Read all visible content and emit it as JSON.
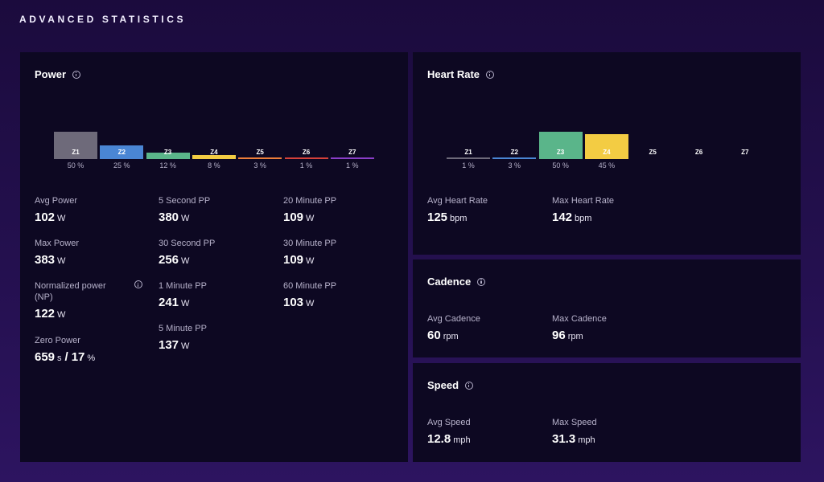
{
  "page": {
    "title": "ADVANCED STATISTICS"
  },
  "power": {
    "title": "Power",
    "zones": [
      {
        "label": "Z1",
        "pct": "50 %",
        "value": 50,
        "color": "#6e6a7a"
      },
      {
        "label": "Z2",
        "pct": "25 %",
        "value": 25,
        "color": "#4a86d4"
      },
      {
        "label": "Z3",
        "pct": "12 %",
        "value": 12,
        "color": "#5ab58a"
      },
      {
        "label": "Z4",
        "pct": "8 %",
        "value": 8,
        "color": "#f3cc43"
      },
      {
        "label": "Z5",
        "pct": "3 %",
        "value": 3,
        "color": "#ee7e3a"
      },
      {
        "label": "Z6",
        "pct": "1 %",
        "value": 1,
        "color": "#d6413a"
      },
      {
        "label": "Z7",
        "pct": "1 %",
        "value": 1,
        "color": "#8a3ec8"
      }
    ],
    "stats": {
      "avg_power": {
        "label": "Avg Power",
        "value": "102",
        "unit": "W"
      },
      "max_power": {
        "label": "Max Power",
        "value": "383",
        "unit": "W"
      },
      "np": {
        "label": "Normalized power (NP)",
        "value": "122",
        "unit": "W"
      },
      "zero_power": {
        "label": "Zero Power",
        "value": "659",
        "unit": "s",
        "sep": "/",
        "value2": "17",
        "unit2": "%"
      },
      "pp_5s": {
        "label": "5 Second PP",
        "value": "380",
        "unit": "W"
      },
      "pp_30s": {
        "label": "30 Second PP",
        "value": "256",
        "unit": "W"
      },
      "pp_1m": {
        "label": "1 Minute PP",
        "value": "241",
        "unit": "W"
      },
      "pp_5m": {
        "label": "5 Minute PP",
        "value": "137",
        "unit": "W"
      },
      "pp_20m": {
        "label": "20 Minute PP",
        "value": "109",
        "unit": "W"
      },
      "pp_30m": {
        "label": "30 Minute PP",
        "value": "109",
        "unit": "W"
      },
      "pp_60m": {
        "label": "60 Minute PP",
        "value": "103",
        "unit": "W"
      }
    }
  },
  "heart_rate": {
    "title": "Heart Rate",
    "zones": [
      {
        "label": "Z1",
        "pct": "1 %",
        "value": 1,
        "color": "#6e6a7a"
      },
      {
        "label": "Z2",
        "pct": "3 %",
        "value": 3,
        "color": "#4a86d4"
      },
      {
        "label": "Z3",
        "pct": "50 %",
        "value": 50,
        "color": "#5ab58a"
      },
      {
        "label": "Z4",
        "pct": "45 %",
        "value": 45,
        "color": "#f3cc43"
      },
      {
        "label": "Z5",
        "pct": "",
        "value": 0,
        "color": "#ee7e3a"
      },
      {
        "label": "Z6",
        "pct": "",
        "value": 0,
        "color": "#d6413a"
      },
      {
        "label": "Z7",
        "pct": "",
        "value": 0,
        "color": "#8a3ec8"
      }
    ],
    "stats": {
      "avg": {
        "label": "Avg Heart Rate",
        "value": "125",
        "unit": "bpm"
      },
      "max": {
        "label": "Max Heart Rate",
        "value": "142",
        "unit": "bpm"
      }
    }
  },
  "cadence": {
    "title": "Cadence",
    "stats": {
      "avg": {
        "label": "Avg Cadence",
        "value": "60",
        "unit": "rpm"
      },
      "max": {
        "label": "Max Cadence",
        "value": "96",
        "unit": "rpm"
      }
    }
  },
  "speed": {
    "title": "Speed",
    "stats": {
      "avg": {
        "label": "Avg Speed",
        "value": "12.8",
        "unit": "mph"
      },
      "max": {
        "label": "Max Speed",
        "value": "31.3",
        "unit": "mph"
      }
    }
  }
}
